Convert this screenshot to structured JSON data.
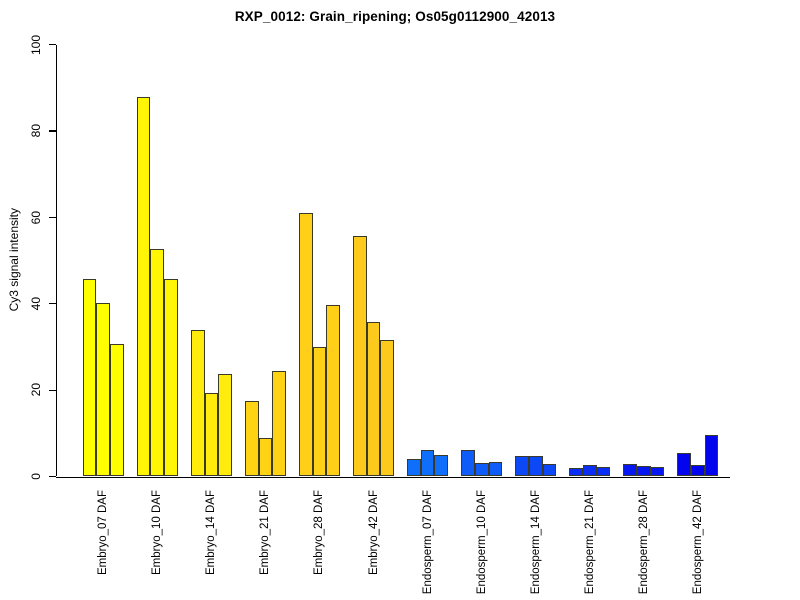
{
  "chart_data": {
    "type": "bar",
    "title": "RXP_0012: Grain_ripening; Os05g0112900_42013",
    "xlabel": "",
    "ylabel": "Cy3 signal intensity",
    "ylim": [
      0,
      100
    ],
    "yticks": [
      0,
      20,
      40,
      60,
      80,
      100
    ],
    "grid": false,
    "legend_position": "none",
    "bars_per_group": 3,
    "bar_border_color": "#3a3a28",
    "axis_color": "#000000",
    "groups": [
      {
        "label": "Embryo_07 DAF",
        "color": "#FFFF00",
        "values": [
          45.8,
          40.2,
          30.8
        ]
      },
      {
        "label": "Embryo_10 DAF",
        "color": "#FFF505",
        "values": [
          87.9,
          52.6,
          45.8
        ]
      },
      {
        "label": "Embryo_14 DAF",
        "color": "#FFEC0C",
        "values": [
          34.0,
          19.3,
          23.8
        ]
      },
      {
        "label": "Embryo_21 DAF",
        "color": "#FDD314",
        "values": [
          17.4,
          8.9,
          24.5
        ]
      },
      {
        "label": "Embryo_28 DAF",
        "color": "#FFD017",
        "values": [
          61.0,
          29.9,
          39.8
        ]
      },
      {
        "label": "Embryo_42 DAF",
        "color": "#FCCA1D",
        "values": [
          55.7,
          35.7,
          31.5
        ]
      },
      {
        "label": "Endosperm_07 DAF",
        "color": "#0F6EFA",
        "values": [
          4.0,
          6.1,
          5.0
        ]
      },
      {
        "label": "Endosperm_10 DAF",
        "color": "#105CF8",
        "values": [
          6.1,
          3.2,
          3.4
        ]
      },
      {
        "label": "Endosperm_14 DAF",
        "color": "#0D48F6",
        "values": [
          4.8,
          4.8,
          3.0
        ]
      },
      {
        "label": "Endosperm_21 DAF",
        "color": "#0A2EF3",
        "values": [
          1.9,
          2.6,
          2.1
        ]
      },
      {
        "label": "Endosperm_28 DAF",
        "color": "#0617F1",
        "values": [
          2.9,
          2.5,
          2.3
        ]
      },
      {
        "label": "Endosperm_42 DAF",
        "color": "#0204EE",
        "values": [
          5.4,
          2.6,
          9.6
        ]
      }
    ]
  }
}
